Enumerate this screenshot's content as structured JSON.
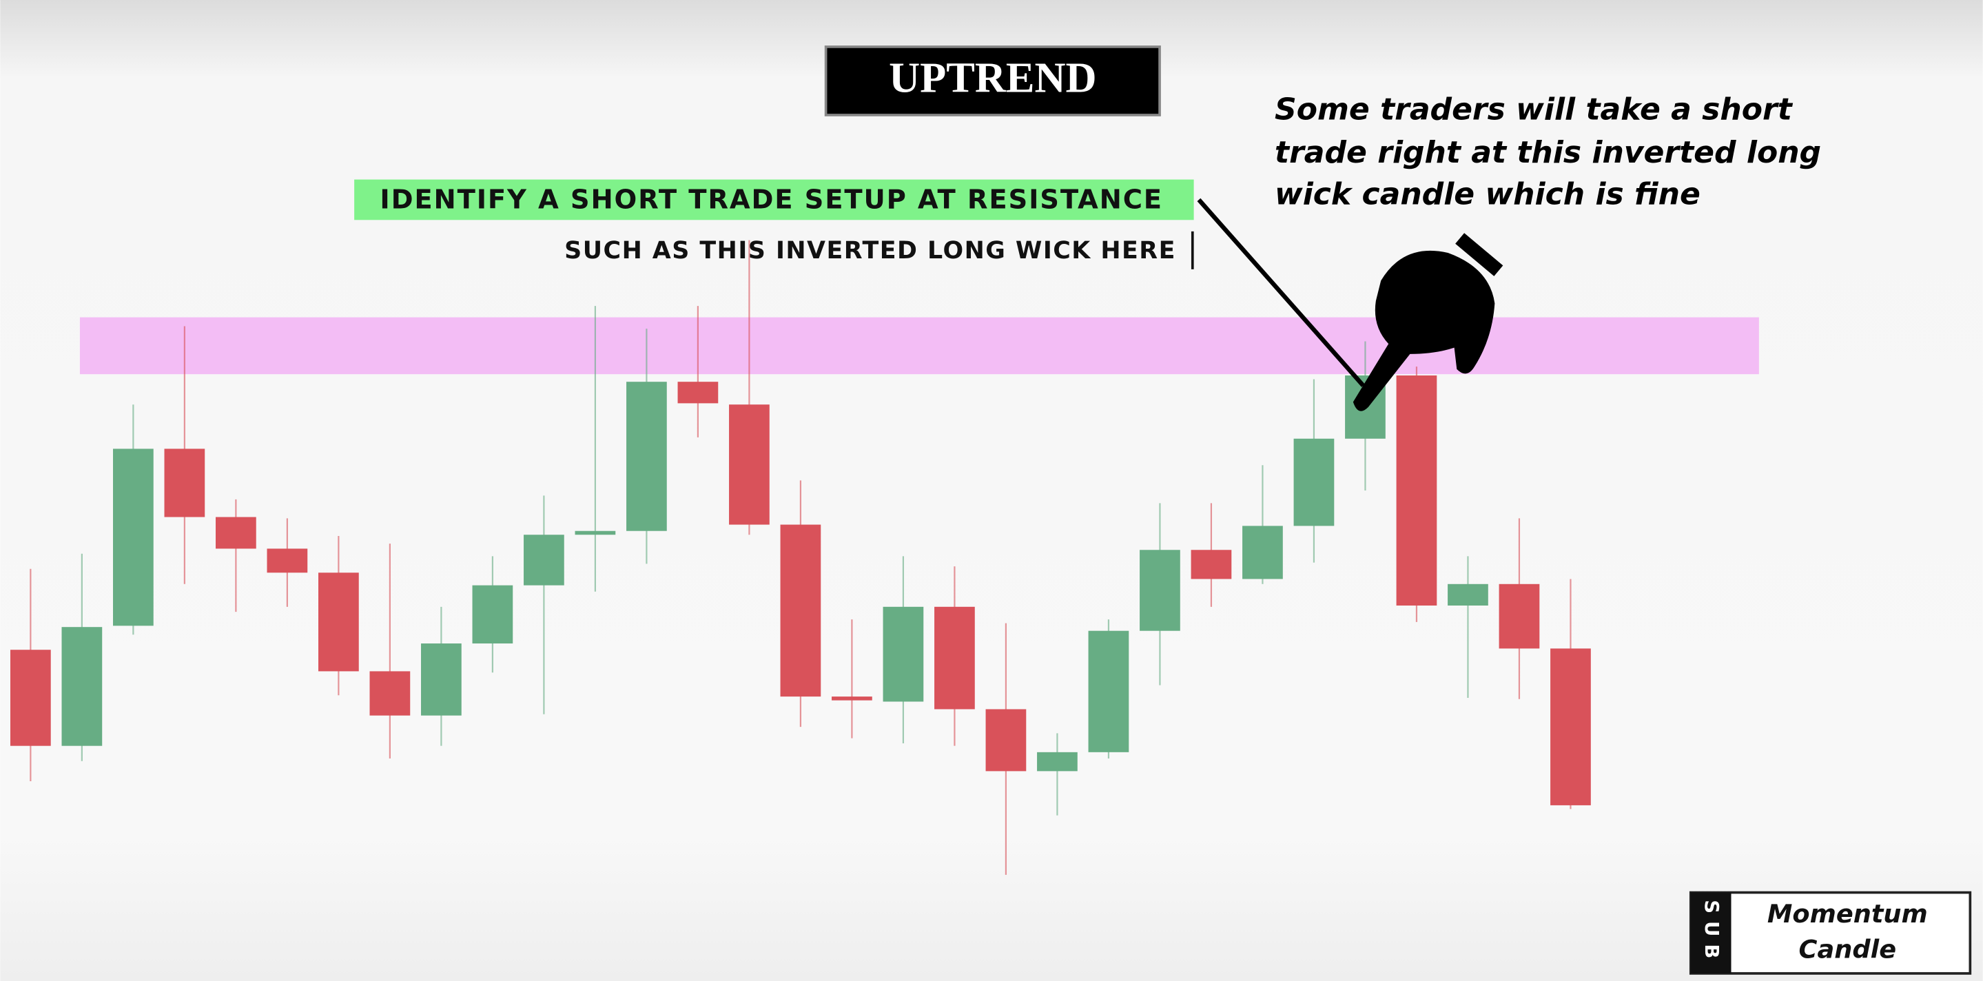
{
  "chart_data": {
    "type": "candlestick",
    "title": "UPTREND",
    "headline": "IDENTIFY A SHORT TRADE SETUP AT RESISTANCE",
    "subheadline": "SUCH AS THIS INVERTED LONG WICK HERE",
    "annotation": [
      "Some traders will take a short",
      "trade right at this inverted long",
      "wick candle which is fine"
    ],
    "logo": {
      "badge": "SUB",
      "lines": [
        "Momentum",
        "Candle"
      ]
    },
    "open": [
      262,
      186,
      281,
      421,
      367,
      342,
      323,
      245,
      210,
      267,
      313,
      353,
      356,
      474,
      456,
      361,
      225,
      221,
      296,
      215,
      166,
      181,
      277,
      341,
      318,
      360,
      429,
      479,
      297,
      314,
      263
    ],
    "high": [
      326,
      338,
      456,
      518,
      381,
      366,
      352,
      346,
      296,
      336,
      384,
      534,
      516,
      534,
      586,
      396,
      286,
      336,
      328,
      283,
      196,
      286,
      378,
      378,
      408,
      476,
      506,
      486,
      336,
      366,
      318
    ],
    "low": [
      158,
      174,
      274,
      314,
      292,
      296,
      226,
      176,
      186,
      244,
      211,
      308,
      330,
      430,
      353,
      201,
      192,
      188,
      186,
      84,
      131,
      176,
      234,
      296,
      314,
      331,
      388,
      284,
      224,
      223,
      136
    ],
    "close": [
      186,
      280,
      421,
      367,
      342,
      323,
      245,
      210,
      267,
      313,
      353,
      356,
      474,
      457,
      361,
      225,
      222,
      296,
      215,
      166,
      181,
      277,
      341,
      318,
      360,
      429,
      479,
      297,
      314,
      263,
      139
    ],
    "up_color": "#67ad84",
    "down_color": "#d9525a",
    "zone": {
      "from": 480,
      "to": 525,
      "color": "#f3bdf5"
    },
    "ylim": [
      0,
      776
    ]
  }
}
